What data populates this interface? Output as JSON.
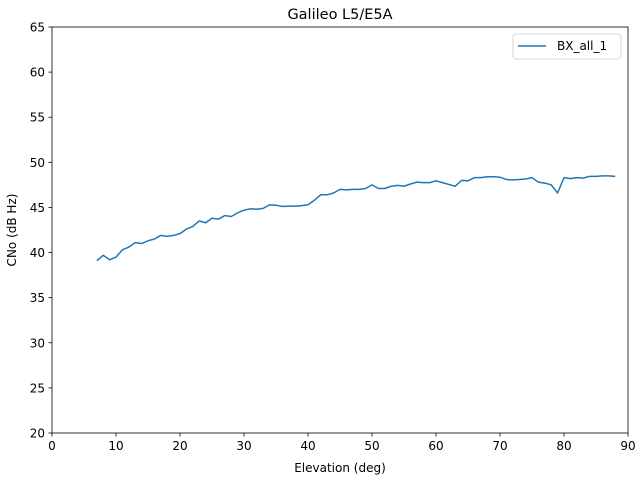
{
  "chart_data": {
    "type": "line",
    "title": "Galileo L5/E5A",
    "xlabel": "Elevation (deg)",
    "ylabel": "CNo (dB Hz)",
    "xlim": [
      0,
      90
    ],
    "ylim": [
      20,
      65
    ],
    "xticks": [
      "0",
      "10",
      "20",
      "30",
      "40",
      "50",
      "60",
      "70",
      "80",
      "90"
    ],
    "yticks": [
      "20",
      "25",
      "30",
      "35",
      "40",
      "45",
      "50",
      "55",
      "60",
      "65"
    ],
    "grid": false,
    "legend_position": "top-right",
    "series": [
      {
        "name": "BX_all_1",
        "color": "#1f77b4",
        "x": [
          7,
          8,
          9,
          10,
          11,
          12,
          13,
          14,
          15,
          16,
          17,
          18,
          19,
          20,
          21,
          22,
          23,
          24,
          25,
          26,
          27,
          28,
          29,
          30,
          31,
          32,
          33,
          34,
          35,
          36,
          37,
          38,
          39,
          40,
          41,
          42,
          43,
          44,
          45,
          46,
          47,
          48,
          49,
          50,
          51,
          52,
          53,
          54,
          55,
          56,
          57,
          58,
          59,
          60,
          61,
          62,
          63,
          64,
          65,
          66,
          67,
          68,
          69,
          70,
          71,
          72,
          73,
          74,
          75,
          76,
          77,
          78,
          79,
          80,
          81,
          82,
          83,
          84,
          85,
          86,
          87,
          88
        ],
        "y": [
          39.1,
          39.7,
          39.2,
          39.5,
          40.3,
          40.6,
          41.1,
          41.0,
          41.3,
          41.5,
          41.9,
          41.8,
          41.9,
          42.1,
          42.6,
          42.9,
          43.5,
          43.3,
          43.8,
          43.7,
          44.1,
          44.0,
          44.4,
          44.7,
          44.85,
          44.8,
          44.9,
          45.3,
          45.25,
          45.1,
          45.15,
          45.15,
          45.2,
          45.3,
          45.8,
          46.4,
          46.4,
          46.6,
          47.0,
          46.95,
          47.0,
          47.0,
          47.1,
          47.5,
          47.1,
          47.1,
          47.35,
          47.45,
          47.35,
          47.6,
          47.8,
          47.75,
          47.75,
          47.95,
          47.75,
          47.55,
          47.35,
          48.0,
          47.95,
          48.3,
          48.3,
          48.4,
          48.4,
          48.35,
          48.1,
          48.05,
          48.1,
          48.15,
          48.3,
          47.8,
          47.7,
          47.5,
          46.6,
          48.3,
          48.2,
          48.3,
          48.25,
          48.45,
          48.45,
          48.5,
          48.5,
          48.45
        ]
      }
    ]
  }
}
